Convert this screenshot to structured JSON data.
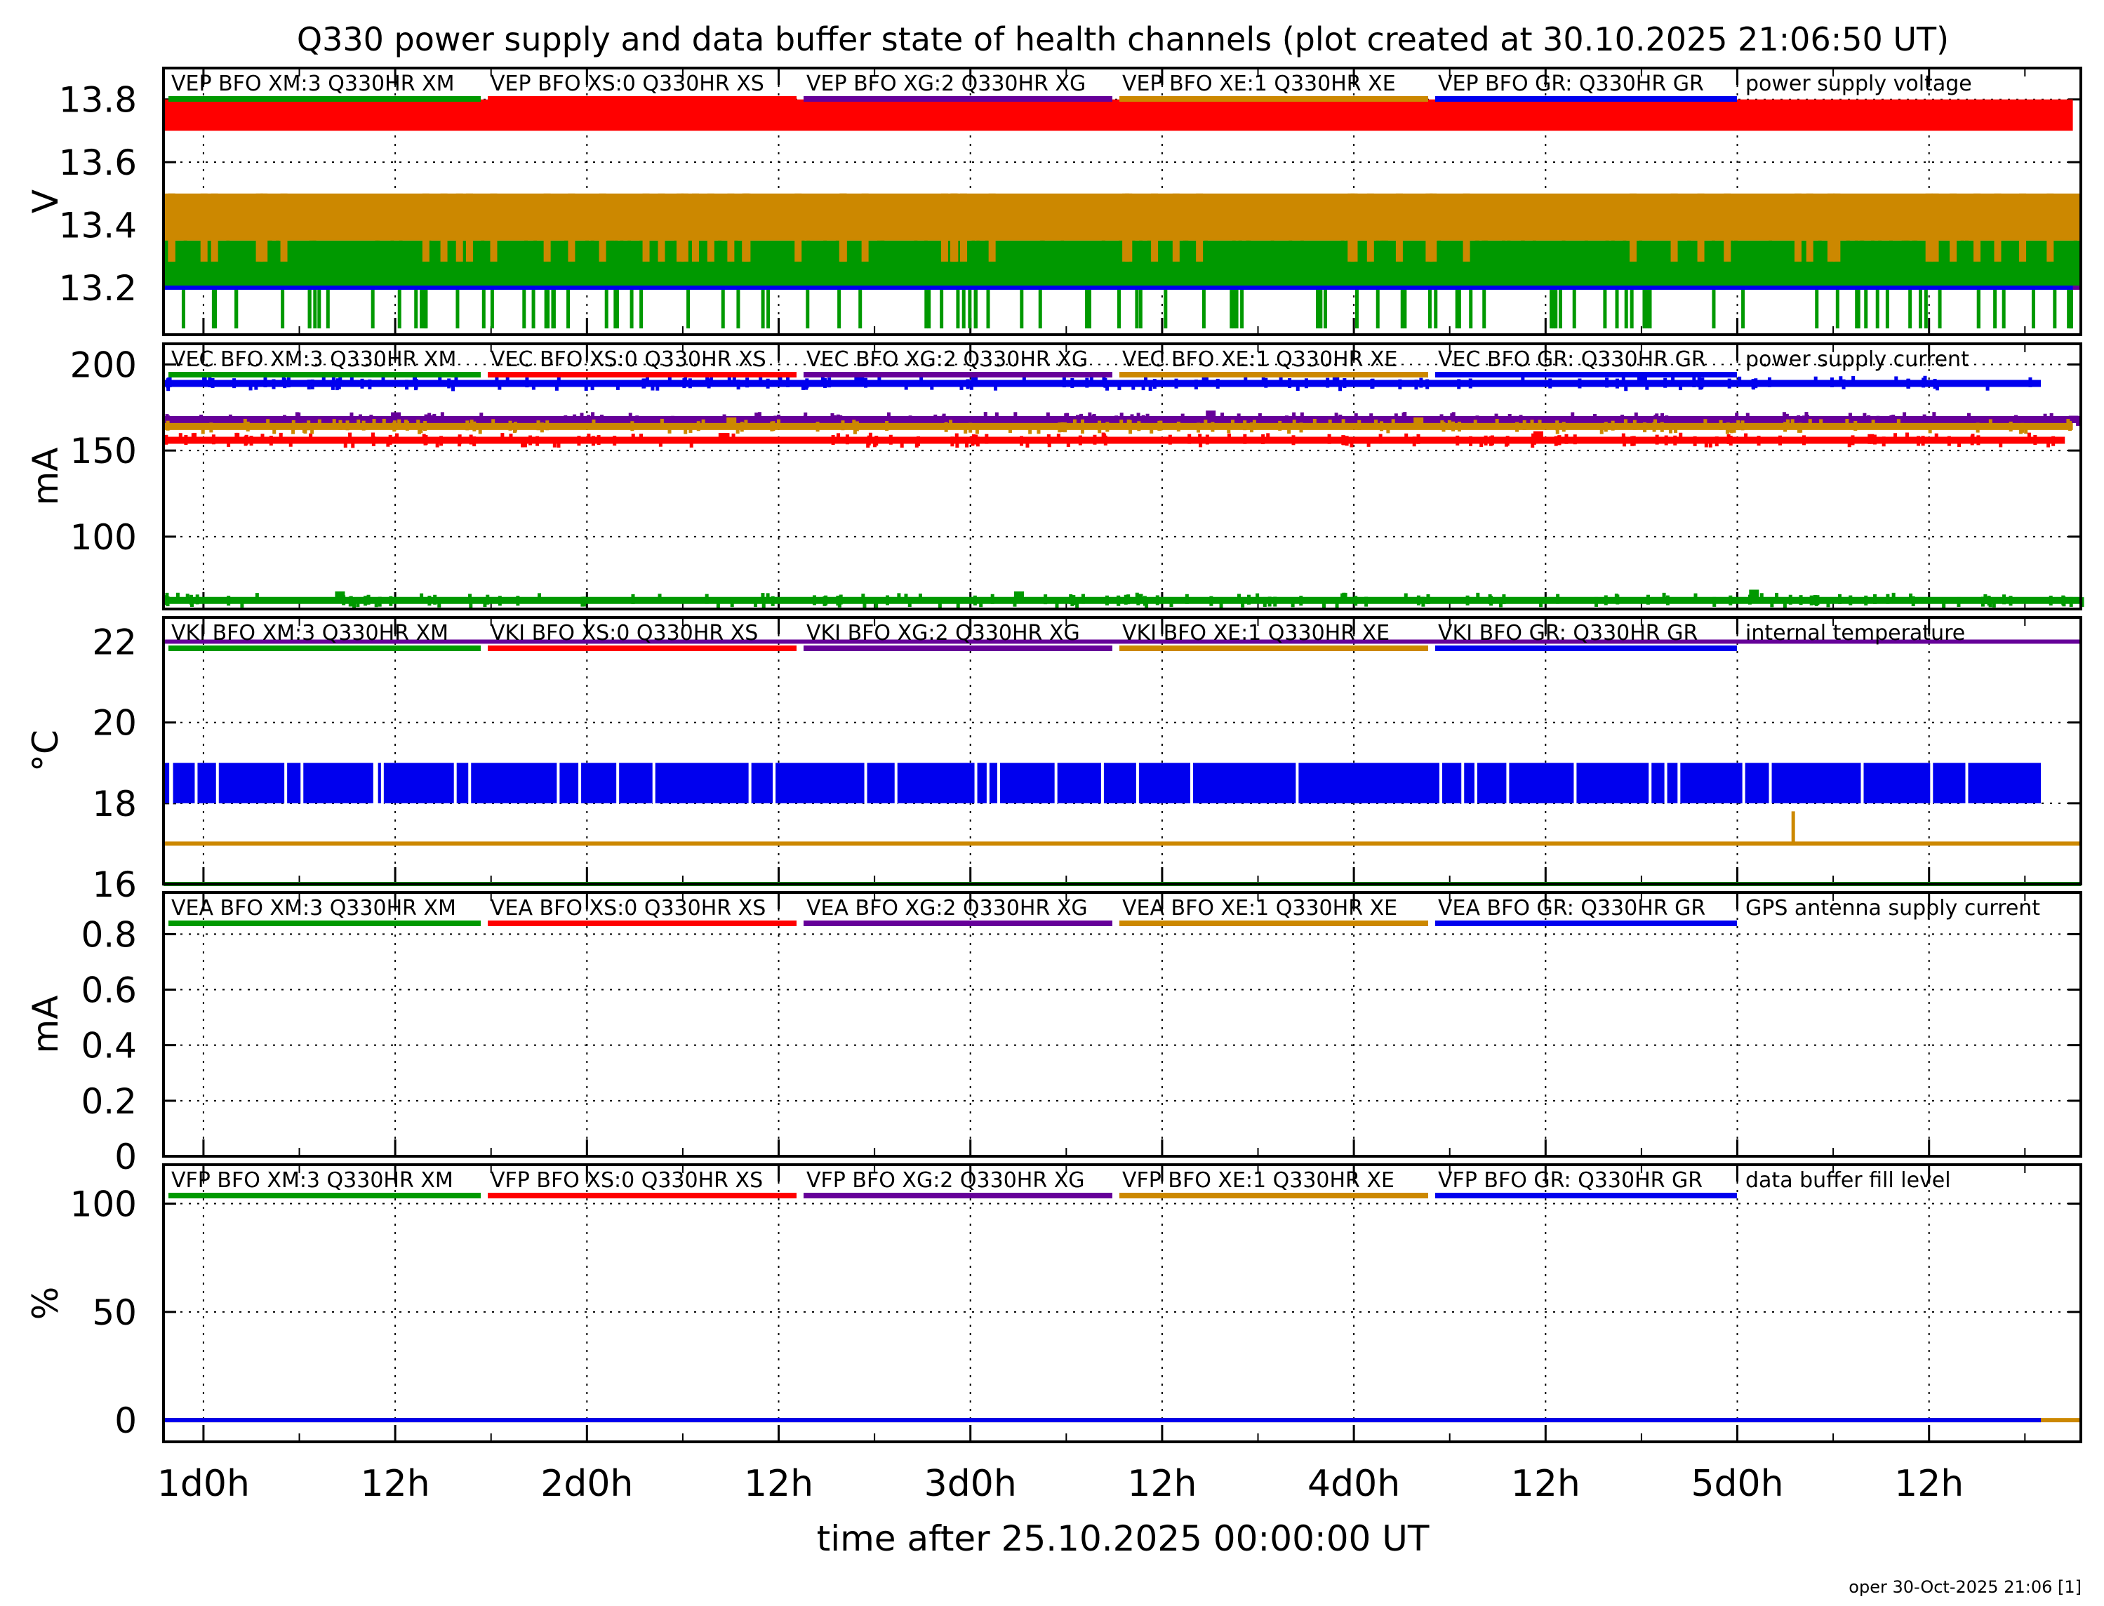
{
  "title": "Q330 power supply and data buffer state of health channels (plot created at 30.10.2025 21:06:50 UT)",
  "xlabel": "time after 25.10.2025 00:00:00 UT",
  "footer": "oper 30-Oct-2025 21:06 [1]",
  "colors": {
    "XM": "#009900",
    "XS": "#ff0000",
    "XG": "#660099",
    "XE": "#cc8800",
    "GR": "#0000ee"
  },
  "x_axis": {
    "unit": "hours",
    "range": [
      21.5,
      141.5
    ],
    "ticks": [
      {
        "hour": 24,
        "label": "1d0h"
      },
      {
        "hour": 36,
        "label": "12h"
      },
      {
        "hour": 48,
        "label": "2d0h"
      },
      {
        "hour": 60,
        "label": "12h"
      },
      {
        "hour": 72,
        "label": "3d0h"
      },
      {
        "hour": 84,
        "label": "12h"
      },
      {
        "hour": 96,
        "label": "4d0h"
      },
      {
        "hour": 108,
        "label": "12h"
      },
      {
        "hour": 120,
        "label": "5d0h"
      },
      {
        "hour": 132,
        "label": "12h"
      }
    ]
  },
  "chart_data": [
    {
      "type": "line",
      "panel_title": "power supply voltage",
      "ylabel": "V",
      "ylim": [
        13.05,
        13.9
      ],
      "yticks": [
        "13.8",
        "13.6",
        "13.4",
        "13.2"
      ],
      "grid": true,
      "legend": [
        "VEP BFO XM:3 Q330HR XM",
        "VEP BFO XS:0 Q330HR XS",
        "VEP BFO XG:2 Q330HR XG",
        "VEP BFO XE:1 Q330HR XE",
        "VEP BFO GR: Q330HR GR"
      ],
      "series": [
        {
          "name": "VEP BFO XM:3 Q330HR XM",
          "color_key": "XM",
          "band": [
            13.2,
            13.35
          ],
          "spikes_up": 13.48,
          "spikes_down": 13.07,
          "x_end": 141.5
        },
        {
          "name": "VEP BFO XS:0 Q330HR XS",
          "color_key": "XS",
          "band": [
            13.7,
            13.8
          ],
          "x_end": 141.0
        },
        {
          "name": "VEP BFO XG:2 Q330HR XG",
          "color_key": "XG",
          "value": 13.2,
          "x_end": 141.5
        },
        {
          "name": "VEP BFO XE:1 Q330HR XE",
          "color_key": "XE",
          "band": [
            13.35,
            13.5
          ],
          "x_end": 141.5
        },
        {
          "name": "VEP BFO GR: Q330HR GR",
          "color_key": "GR",
          "value": 13.2,
          "x_end": 141.0
        }
      ]
    },
    {
      "type": "line",
      "panel_title": "power supply current",
      "ylabel": "mA",
      "ylim": [
        58,
        212
      ],
      "yticks": [
        "200",
        "150",
        "100"
      ],
      "grid": true,
      "legend": [
        "VEC BFO XM:3 Q330HR XM",
        "VEC BFO XS:0 Q330HR XS",
        "VEC BFO XG:2 Q330HR XG",
        "VEC BFO XE:1 Q330HR XE",
        "VEC BFO GR: Q330HR GR"
      ],
      "series": [
        {
          "name": "VEC BFO XM:3 Q330HR XM",
          "color_key": "XM",
          "value": 63,
          "bumps": [
            {
              "x": 32.5,
              "v": 67
            },
            {
              "x": 75,
              "v": 67
            },
            {
              "x": 121,
              "v": 68
            }
          ],
          "x_end": 141.5
        },
        {
          "name": "VEC BFO XS:0 Q330HR XS",
          "color_key": "XS",
          "value": 156,
          "bumps": [
            {
              "x": 56.5,
              "v": 159
            },
            {
              "x": 107.5,
              "v": 160
            }
          ],
          "x_end": 140.5
        },
        {
          "name": "VEC BFO XG:2 Q330HR XG",
          "color_key": "XG",
          "value": 168,
          "bumps": [
            {
              "x": 36,
              "v": 171
            },
            {
              "x": 87,
              "v": 172
            },
            {
              "x": 141,
              "v": 169
            }
          ],
          "x_end": 141.5
        },
        {
          "name": "VEC BFO XE:1 Q330HR XE",
          "color_key": "XE",
          "value": 164,
          "bumps": [
            {
              "x": 57,
              "v": 168
            },
            {
              "x": 100,
              "v": 168
            }
          ],
          "x_end": 141.0
        },
        {
          "name": "VEC BFO GR: Q330HR GR",
          "color_key": "GR",
          "value": 189,
          "bumps": [
            {
              "x": 65,
              "v": 194
            },
            {
              "x": 114,
              "v": 194
            }
          ],
          "x_end": 139.0
        }
      ]
    },
    {
      "type": "line",
      "panel_title": "internal temperature",
      "ylabel": "°C",
      "ylim": [
        16,
        22.6
      ],
      "yticks": [
        "22",
        "20",
        "18",
        "16"
      ],
      "grid": true,
      "legend": [
        "VKI BFO XM:3 Q330HR XM",
        "VKI BFO XS:0 Q330HR XS",
        "VKI BFO XG:2 Q330HR XG",
        "VKI BFO XE:1 Q330HR XE",
        "VKI BFO GR: Q330HR GR"
      ],
      "series": [
        {
          "name": "VKI BFO XM:3 Q330HR XM",
          "color_key": "XM",
          "value": 16,
          "x_end": 141.5
        },
        {
          "name": "VKI BFO XS:0 Q330HR XS",
          "color_key": "XS",
          "value": 22,
          "x_end": 141.5
        },
        {
          "name": "VKI BFO XG:2 Q330HR XG",
          "color_key": "XG",
          "value": 22,
          "x_end": 141.5
        },
        {
          "name": "VKI BFO XE:1 Q330HR XE",
          "color_key": "XE",
          "value": 17,
          "step": {
            "x": 123.5,
            "v": 17.8
          },
          "x_end": 141.5
        },
        {
          "name": "VKI BFO GR: Q330HR GR",
          "color_key": "GR",
          "band": [
            18,
            19
          ],
          "x_end": 139.0
        }
      ]
    },
    {
      "type": "line",
      "panel_title": "GPS antenna supply current",
      "ylabel": "mA",
      "ylim": [
        0,
        0.95
      ],
      "yticks": [
        "0.8",
        "0.6",
        "0.4",
        "0.2",
        "0"
      ],
      "grid": true,
      "legend": [
        "VEA BFO XM:3 Q330HR XM",
        "VEA BFO XS:0 Q330HR XS",
        "VEA BFO XG:2 Q330HR XG",
        "VEA BFO XE:1 Q330HR XE",
        "VEA BFO GR: Q330HR GR"
      ],
      "series": []
    },
    {
      "type": "line",
      "panel_title": "data buffer fill level",
      "ylabel": "%",
      "ylim": [
        -10,
        118
      ],
      "yticks": [
        "100",
        "50",
        "0"
      ],
      "grid": true,
      "legend": [
        "VFP BFO XM:3 Q330HR XM",
        "VFP BFO XS:0 Q330HR XS",
        "VFP BFO XG:2 Q330HR XG",
        "VFP BFO XE:1 Q330HR XE",
        "VFP BFO GR: Q330HR GR"
      ],
      "series": [
        {
          "name": "VFP BFO XE:1 Q330HR XE",
          "color_key": "XE",
          "value": 0,
          "x_end": 141.5
        },
        {
          "name": "VFP BFO GR: Q330HR GR",
          "color_key": "GR",
          "value": 0,
          "x_end": 139.0
        }
      ]
    }
  ]
}
